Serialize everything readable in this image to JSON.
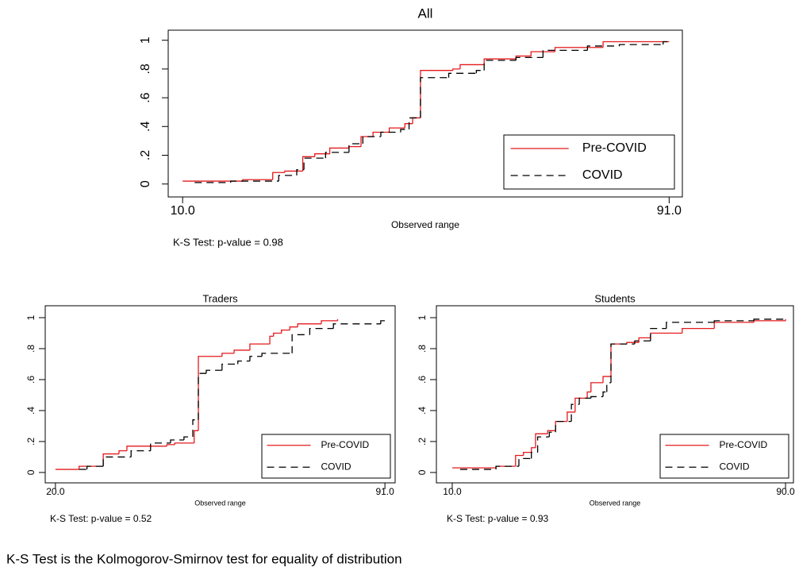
{
  "chart_data": [
    {
      "type": "step",
      "title": "All",
      "xlabel": "Observed range",
      "note": "K-S Test: p-value = 0.98",
      "xlim": [
        7.6,
        93.2
      ],
      "ylim": [
        -0.09,
        1.07
      ],
      "xticks": [
        {
          "value": 10,
          "label": "10.0"
        },
        {
          "value": 91,
          "label": "91.0"
        }
      ],
      "yticks": [
        0,
        {
          "value": 0.2,
          "label": ".2"
        },
        {
          "value": 0.4,
          "label": ".4"
        },
        {
          "value": 0.6,
          "label": ".6"
        },
        {
          "value": 0.8,
          "label": ".8"
        },
        1
      ],
      "legend": "bottom-right",
      "series": [
        {
          "name": "Pre-COVID",
          "color": "#e41a1c",
          "dashed": false,
          "x": [
            10,
            20,
            25,
            27,
            30,
            32,
            34.5,
            37.7,
            39.7,
            41.7,
            44.4,
            47,
            48.3,
            49.6,
            55,
            56.2,
            60.2,
            65.5,
            68,
            72,
            80,
            91
          ],
          "values": [
            0.02,
            0.03,
            0.08,
            0.09,
            0.19,
            0.21,
            0.25,
            0.26,
            0.33,
            0.36,
            0.39,
            0.42,
            0.46,
            0.79,
            0.8,
            0.83,
            0.87,
            0.89,
            0.92,
            0.95,
            0.99,
            0.99
          ]
        },
        {
          "name": "COVID",
          "color": "#000000",
          "dashed": true,
          "x": [
            12,
            18,
            26,
            29,
            30.2,
            33.8,
            37.7,
            40,
            43,
            46.3,
            47.7,
            49.6,
            54.3,
            58.9,
            60.2,
            65.5,
            70,
            77.4,
            82.7,
            90,
            91
          ],
          "values": [
            0.01,
            0.02,
            0.06,
            0.1,
            0.18,
            0.22,
            0.28,
            0.33,
            0.36,
            0.38,
            0.46,
            0.74,
            0.77,
            0.79,
            0.86,
            0.88,
            0.93,
            0.96,
            0.97,
            0.99,
            0.99
          ]
        }
      ]
    },
    {
      "type": "step",
      "title": "Traders",
      "xlabel": "Observed range",
      "note": "K-S Test: p-value = 0.52",
      "xlim": [
        17.8,
        93.2
      ],
      "ylim": [
        -0.067,
        1.077
      ],
      "xticks": [
        {
          "value": 20,
          "label": "20.0"
        },
        {
          "value": 91,
          "label": "91.0"
        }
      ],
      "yticks": [
        0,
        {
          "value": 0.2,
          "label": ".2"
        },
        {
          "value": 0.4,
          "label": ".4"
        },
        {
          "value": 0.6,
          "label": ".6"
        },
        {
          "value": 0.8,
          "label": ".8"
        },
        1
      ],
      "legend": "bottom-right",
      "series": [
        {
          "name": "Pre-COVID",
          "color": "#e41a1c",
          "dashed": false,
          "x": [
            20,
            25.1,
            30.3,
            33.7,
            35.4,
            44,
            45.7,
            49.9,
            50.8,
            55.9,
            58.5,
            61.9,
            66.2,
            67,
            68.7,
            70.5,
            72.2,
            77.3,
            80.8
          ],
          "values": [
            0.02,
            0.04,
            0.12,
            0.14,
            0.17,
            0.18,
            0.19,
            0.27,
            0.75,
            0.77,
            0.79,
            0.83,
            0.88,
            0.9,
            0.92,
            0.94,
            0.96,
            0.98,
            0.99
          ]
        },
        {
          "name": "COVID",
          "color": "#000000",
          "dashed": true,
          "x": [
            25.1,
            26.8,
            30.3,
            36.3,
            40.5,
            44.8,
            47.7,
            49.6,
            50.8,
            52.5,
            55.9,
            59.3,
            61.9,
            64.5,
            71,
            74.8,
            79.9,
            90.1,
            91
          ],
          "values": [
            0.02,
            0.04,
            0.1,
            0.14,
            0.19,
            0.21,
            0.23,
            0.34,
            0.64,
            0.66,
            0.7,
            0.72,
            0.75,
            0.77,
            0.89,
            0.93,
            0.96,
            0.98,
            0.98
          ]
        }
      ]
    },
    {
      "type": "step",
      "title": "Students",
      "xlabel": "Observed range",
      "note": "K-S Test: p-value = 0.93",
      "xlim": [
        6.2,
        91.9
      ],
      "ylim": [
        -0.067,
        1.077
      ],
      "xticks": [
        {
          "value": 10,
          "label": "10.0"
        },
        {
          "value": 90,
          "label": "90.0"
        }
      ],
      "yticks": [
        0,
        {
          "value": 0.2,
          "label": ".2"
        },
        {
          "value": 0.4,
          "label": ".4"
        },
        {
          "value": 0.6,
          "label": ".6"
        },
        {
          "value": 0.8,
          "label": ".8"
        },
        1
      ],
      "legend": "bottom-right",
      "series": [
        {
          "name": "Pre-COVID",
          "color": "#e41a1c",
          "dashed": false,
          "x": [
            10,
            20.5,
            25.2,
            27.1,
            29,
            30,
            32.9,
            34.8,
            37.6,
            39.5,
            42.4,
            43.3,
            46.2,
            48.1,
            51.9,
            54.8,
            57.6,
            65.2,
            72.9,
            82.4,
            90
          ],
          "values": [
            0.03,
            0.04,
            0.11,
            0.13,
            0.16,
            0.25,
            0.27,
            0.33,
            0.39,
            0.48,
            0.52,
            0.58,
            0.62,
            0.83,
            0.84,
            0.87,
            0.9,
            0.93,
            0.97,
            0.98,
            0.99
          ]
        },
        {
          "name": "COVID",
          "color": "#000000",
          "dashed": true,
          "x": [
            11.9,
            20.5,
            26,
            29,
            30.5,
            33.3,
            34.8,
            38.6,
            40.5,
            43.3,
            46.2,
            47.1,
            48.1,
            53.8,
            57.6,
            61.4,
            72.9,
            82.4,
            90
          ],
          "values": [
            0.02,
            0.04,
            0.09,
            0.13,
            0.23,
            0.26,
            0.33,
            0.44,
            0.48,
            0.49,
            0.52,
            0.58,
            0.83,
            0.85,
            0.93,
            0.97,
            0.98,
            0.99,
            0.99
          ]
        }
      ]
    }
  ],
  "caption": "K-S Test is the Kolmogorov-Smirnov test for equality of distribution"
}
